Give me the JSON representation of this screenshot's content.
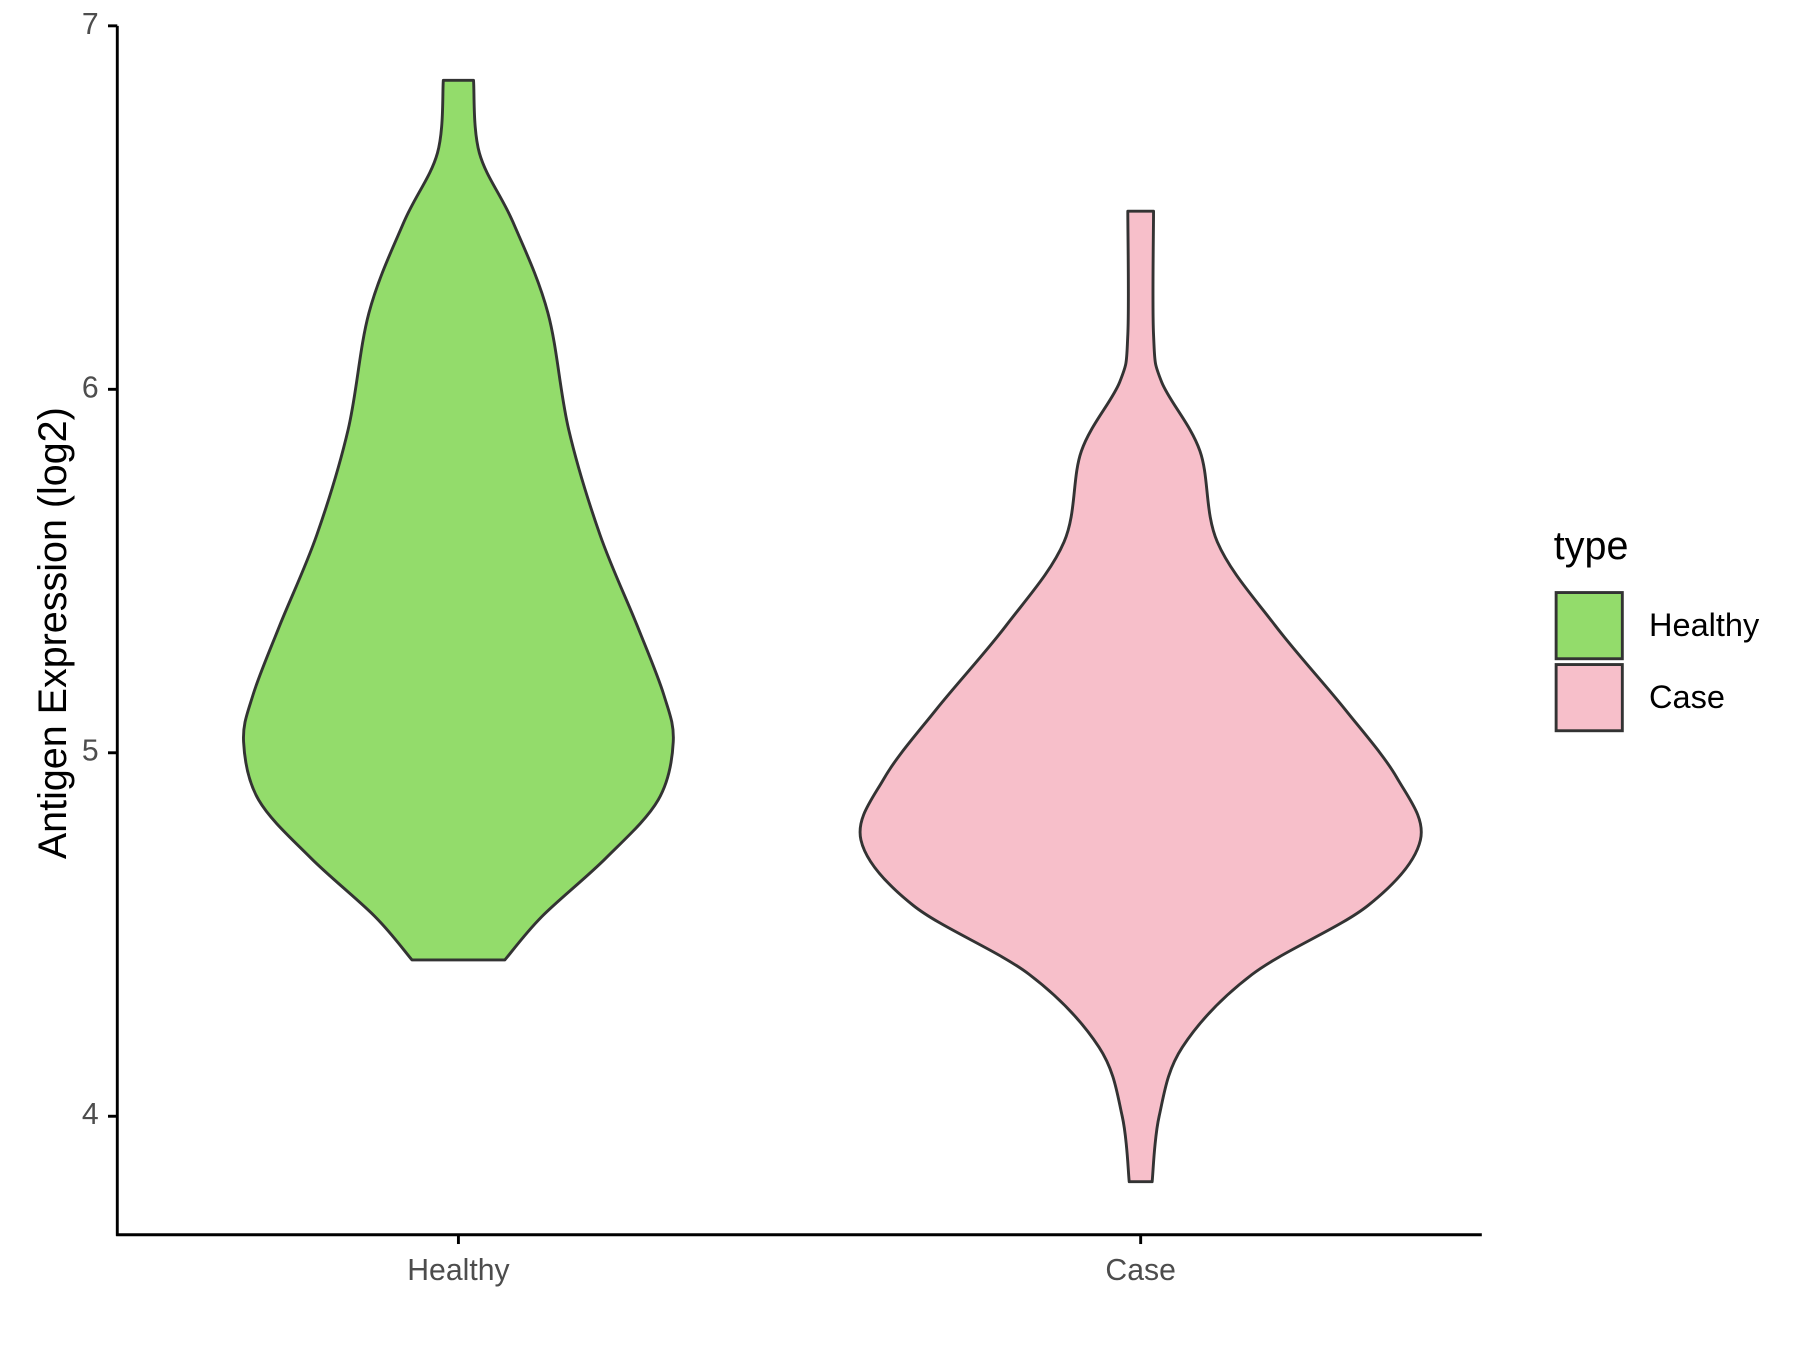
{
  "chart_data": {
    "type": "violin",
    "y_label": "Antigen Expression (log2)",
    "categories": [
      "Healthy",
      "Case"
    ],
    "legend_title": "type",
    "legend_position": "right",
    "ylim": [
      3.674,
      7
    ],
    "yticks": [
      4,
      5,
      6,
      7
    ],
    "series": [
      {
        "name": "Healthy",
        "color": "#93dc6b",
        "values": [
          6.85,
          6.65,
          6.46,
          6.21,
          5.89,
          5.6,
          5.35,
          5.16,
          5.03,
          4.87,
          4.71,
          4.55,
          4.43
        ],
        "density": [
          0.054,
          0.075,
          0.195,
          0.32,
          0.394,
          0.506,
          0.639,
          0.734,
          0.768,
          0.714,
          0.527,
          0.299,
          0.166
        ]
      },
      {
        "name": "Case",
        "color": "#f7bfca",
        "values": [
          6.49,
          6.15,
          6.02,
          5.83,
          5.58,
          5.35,
          5.12,
          4.93,
          4.76,
          4.58,
          4.39,
          4.19,
          4.0,
          3.82
        ],
        "density": [
          0.046,
          0.046,
          0.075,
          0.212,
          0.274,
          0.481,
          0.73,
          0.917,
          1,
          0.813,
          0.398,
          0.149,
          0.066,
          0.041
        ]
      }
    ]
  }
}
